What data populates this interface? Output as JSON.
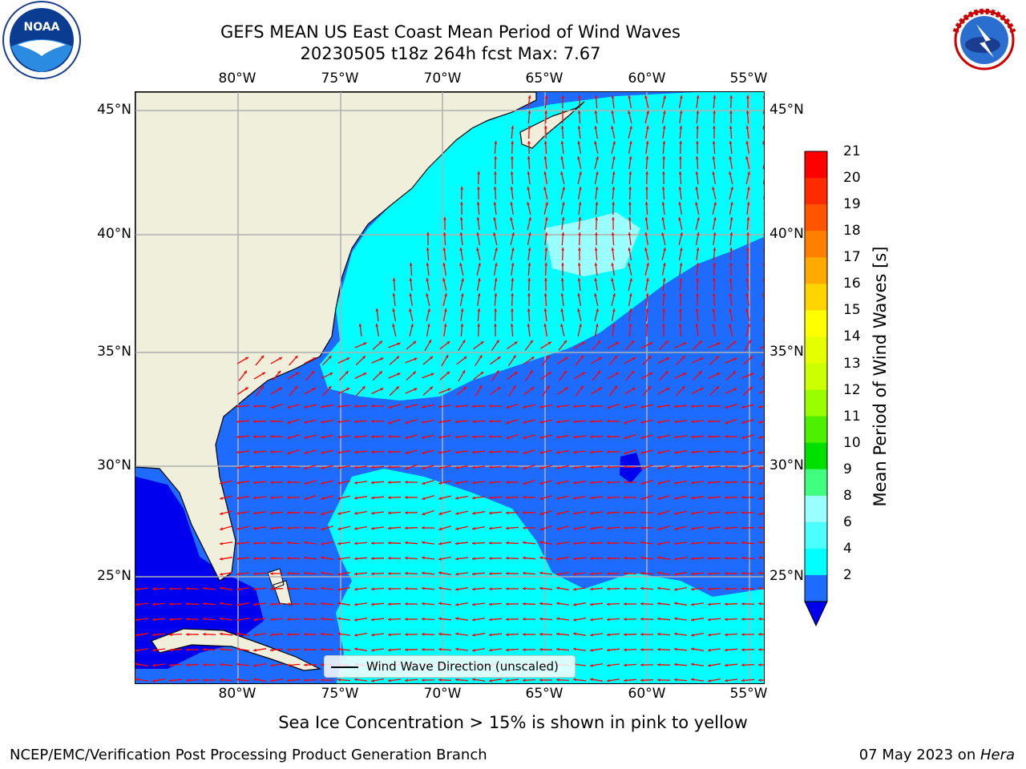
{
  "title": {
    "line1": "GEFS MEAN US East Coast Mean Period of Wind Waves",
    "line2": "20230505 t18z 264h fcst   Max: 7.67"
  },
  "logos": {
    "left": "noaa-logo",
    "right": "national-weather-service-logo"
  },
  "map": {
    "lon_labels": [
      "80°W",
      "75°W",
      "70°W",
      "65°W",
      "60°W",
      "55°W"
    ],
    "lat_labels": [
      "45°N",
      "40°N",
      "35°N",
      "30°N",
      "25°N"
    ],
    "lon_range": [
      -85,
      -55
    ],
    "lat_range": [
      20.5,
      46
    ],
    "grid": true,
    "colors": {
      "land": "#efefdc",
      "low": "#1e6bff",
      "mid": "#00ffff",
      "high": "#99ffff",
      "vlow": "#0000ee",
      "arrow": "#ff0000",
      "grid": "#b0b0b0"
    }
  },
  "colorbar": {
    "ticks": [
      "21",
      "20",
      "19",
      "18",
      "17",
      "16",
      "15",
      "14",
      "13",
      "12",
      "11",
      "10",
      "9",
      "8",
      "6",
      "4",
      "2"
    ],
    "label": "Mean Period of Wind Waves [s]",
    "colors": [
      "#ff0000",
      "#ff2a00",
      "#ff5500",
      "#ff8000",
      "#ffaa00",
      "#ffd500",
      "#ffff00",
      "#e6ff00",
      "#ccff00",
      "#99ff00",
      "#4cf000",
      "#00e000",
      "#40ff80",
      "#99ffff",
      "#4cffff",
      "#00ffff",
      "#1e6bff"
    ],
    "extend_color": "#0000ee"
  },
  "legend": {
    "label": "Wind Wave Direction (unscaled)"
  },
  "note": "Sea Ice Concentration > 15% is shown in pink to yellow",
  "footer": {
    "left": "NCEP/EMC/Verification Post Processing Product Generation Branch",
    "date": "07 May 2023 on ",
    "machine": "Hera"
  }
}
